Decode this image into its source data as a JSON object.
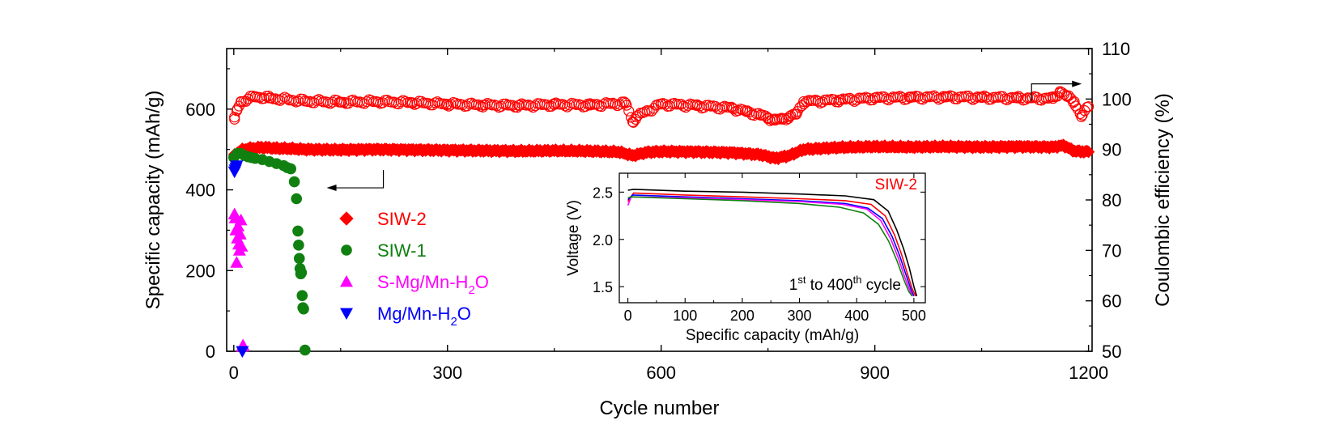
{
  "chart_data": [
    {
      "type": "scatter",
      "xlabel": "Cycle number",
      "ylabel_left": "Specific capacity (mAh/g)",
      "ylabel_right": "Coulombic efficiency (%)",
      "xlim": [
        -10,
        1205
      ],
      "ylim_left": [
        0,
        750
      ],
      "ylim_right": [
        50,
        110
      ],
      "x_ticks": [
        0,
        300,
        600,
        900,
        1200
      ],
      "y_left_ticks": [
        0,
        200,
        400,
        600
      ],
      "y_right_ticks": [
        50,
        60,
        70,
        80,
        90,
        100,
        110
      ],
      "legend_position": "center-left",
      "series": [
        {
          "name": "SIW-2",
          "label_parts": [
            "SIW-2"
          ],
          "axis": "left",
          "marker": "diamond",
          "color": "#ff0000",
          "note": "specific capacity",
          "x": [
            1,
            5,
            10,
            20,
            40,
            60,
            80,
            100,
            150,
            200,
            250,
            300,
            350,
            400,
            450,
            500,
            540,
            560,
            580,
            600,
            650,
            700,
            740,
            760,
            780,
            800,
            850,
            900,
            950,
            1000,
            1050,
            1100,
            1150,
            1165,
            1180,
            1200
          ],
          "y": [
            485,
            492,
            498,
            502,
            505,
            503,
            502,
            500,
            499,
            500,
            499,
            498,
            497,
            496,
            497,
            496,
            494,
            485,
            493,
            495,
            494,
            492,
            487,
            478,
            485,
            500,
            505,
            507,
            506,
            507,
            506,
            507,
            506,
            510,
            496,
            494
          ]
        },
        {
          "name": "SIW-1",
          "label_parts": [
            "SIW-1"
          ],
          "axis": "left",
          "marker": "circle",
          "color": "#108010",
          "x": [
            0,
            5,
            10,
            15,
            20,
            25,
            30,
            40,
            50,
            60,
            70,
            75,
            80,
            85,
            88,
            90,
            91,
            92,
            93,
            94,
            95,
            96,
            97,
            98,
            100
          ],
          "y": [
            480,
            490,
            490,
            485,
            482,
            480,
            478,
            475,
            470,
            465,
            460,
            455,
            452,
            420,
            378,
            298,
            263,
            230,
            205,
            192,
            195,
            138,
            108,
            105,
            3
          ]
        },
        {
          "name": "S-Mg/Mn-H2O",
          "label_parts": [
            "S-Mg/Mn-H",
            "2",
            "O"
          ],
          "axis": "left",
          "marker": "triangle-up",
          "color": "#ff00ff",
          "x": [
            1,
            2,
            3,
            4,
            5,
            6,
            7,
            8,
            9,
            10,
            11,
            12,
            13
          ],
          "y": [
            340,
            330,
            300,
            220,
            280,
            310,
            265,
            250,
            290,
            325,
            260,
            12,
            15
          ]
        },
        {
          "name": "Mg/Mn-H2O",
          "label_parts": [
            "Mg/Mn-H",
            "2",
            "O"
          ],
          "axis": "left",
          "marker": "triangle-down",
          "color": "#0000ff",
          "x": [
            1,
            2,
            3,
            4,
            12
          ],
          "y": [
            445,
            450,
            455,
            460,
            0
          ]
        },
        {
          "name": "SIW-2 Coulombic efficiency",
          "axis": "right",
          "marker": "open-circle",
          "color": "#ff0000",
          "x": [
            1,
            5,
            10,
            20,
            30,
            50,
            100,
            150,
            200,
            250,
            300,
            350,
            400,
            450,
            500,
            550,
            560,
            565,
            600,
            650,
            700,
            720,
            740,
            750,
            760,
            770,
            780,
            790,
            800,
            820,
            850,
            900,
            950,
            1000,
            1050,
            1100,
            1150,
            1160,
            1170,
            1180,
            1190,
            1200
          ],
          "y": [
            96,
            98,
            99.5,
            100,
            100.5,
            100.2,
            99.6,
            99.4,
            99.5,
            99.3,
            99.0,
            98.8,
            98.7,
            98.9,
            98.8,
            99.2,
            95.5,
            96.5,
            99.0,
            98.7,
            98.2,
            97.5,
            96.8,
            96.3,
            95.8,
            96.0,
            96.5,
            97.0,
            99.5,
            99.6,
            99.8,
            100.2,
            100.3,
            100.4,
            100.3,
            100.2,
            100.1,
            101.5,
            100.5,
            99.5,
            96.5,
            98.5
          ]
        }
      ],
      "annotations": [
        {
          "kind": "arrow-left",
          "at_cycle": 210,
          "level_left": 405
        },
        {
          "kind": "arrow-right",
          "at_cycle": 1120,
          "level_right": 103
        }
      ]
    },
    {
      "type": "line",
      "title": "SIW-2",
      "xlabel": "Specific capacity (mAh/g)",
      "ylabel": "Voltage (V)",
      "xlim": [
        -15,
        520
      ],
      "ylim": [
        1.33,
        2.7
      ],
      "x_ticks": [
        0,
        100,
        200,
        300,
        400,
        500
      ],
      "y_ticks": [
        1.5,
        2.0,
        2.5
      ],
      "annotation_parts": [
        "1",
        "st",
        " to 400",
        "th",
        " cycle"
      ],
      "series": [
        {
          "color": "#000000",
          "x": [
            0,
            10,
            100,
            200,
            300,
            380,
            430,
            455,
            470,
            482,
            492,
            500,
            505
          ],
          "y": [
            2.52,
            2.53,
            2.51,
            2.5,
            2.48,
            2.46,
            2.42,
            2.3,
            2.1,
            1.9,
            1.7,
            1.5,
            1.4
          ]
        },
        {
          "color": "#ff0000",
          "x": [
            0,
            10,
            100,
            200,
            300,
            380,
            425,
            450,
            466,
            478,
            488,
            497,
            503
          ],
          "y": [
            2.4,
            2.49,
            2.47,
            2.45,
            2.43,
            2.41,
            2.37,
            2.25,
            2.05,
            1.85,
            1.65,
            1.48,
            1.4
          ]
        },
        {
          "color": "#0000ff",
          "x": [
            0,
            8,
            100,
            200,
            300,
            380,
            420,
            445,
            462,
            475,
            486,
            495,
            500
          ],
          "y": [
            2.42,
            2.47,
            2.45,
            2.43,
            2.41,
            2.38,
            2.33,
            2.22,
            2.03,
            1.83,
            1.63,
            1.47,
            1.4
          ]
        },
        {
          "color": "#ff00ff",
          "x": [
            0,
            6,
            100,
            200,
            300,
            375,
            418,
            442,
            460,
            473,
            484,
            493,
            498
          ],
          "y": [
            2.36,
            2.45,
            2.44,
            2.42,
            2.4,
            2.37,
            2.32,
            2.2,
            2.0,
            1.8,
            1.6,
            1.46,
            1.4
          ]
        },
        {
          "color": "#108010",
          "x": [
            0,
            6,
            100,
            200,
            300,
            370,
            412,
            438,
            456,
            470,
            482,
            491,
            497
          ],
          "y": [
            2.44,
            2.45,
            2.43,
            2.41,
            2.38,
            2.34,
            2.28,
            2.16,
            1.98,
            1.78,
            1.58,
            1.45,
            1.4
          ]
        }
      ]
    }
  ]
}
